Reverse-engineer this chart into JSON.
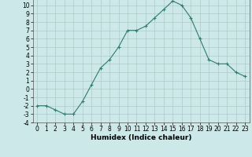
{
  "xlabel": "Humidex (Indice chaleur)",
  "x": [
    0,
    1,
    2,
    3,
    4,
    5,
    6,
    7,
    8,
    9,
    10,
    11,
    12,
    13,
    14,
    15,
    16,
    17,
    18,
    19,
    20,
    21,
    22,
    23
  ],
  "y": [
    -2,
    -2,
    -2.5,
    -3,
    -3,
    -1.5,
    0.5,
    2.5,
    3.5,
    5,
    7,
    7,
    7.5,
    8.5,
    9.5,
    10.5,
    10,
    8.5,
    6,
    3.5,
    3,
    3,
    2,
    1.5
  ],
  "ylim": [
    -4,
    11
  ],
  "xlim": [
    -0.5,
    23.5
  ],
  "yticks": [
    -4,
    -3,
    -2,
    -1,
    0,
    1,
    2,
    3,
    4,
    5,
    6,
    7,
    8,
    9,
    10
  ],
  "xticks": [
    0,
    1,
    2,
    3,
    4,
    5,
    6,
    7,
    8,
    9,
    10,
    11,
    12,
    13,
    14,
    15,
    16,
    17,
    18,
    19,
    20,
    21,
    22,
    23
  ],
  "line_color": "#2e7d6e",
  "marker": "+",
  "bg_color": "#cce8e8",
  "grid_color": "#b0c8c8",
  "title_fontsize": 7,
  "label_fontsize": 6.5,
  "tick_fontsize": 5.5
}
